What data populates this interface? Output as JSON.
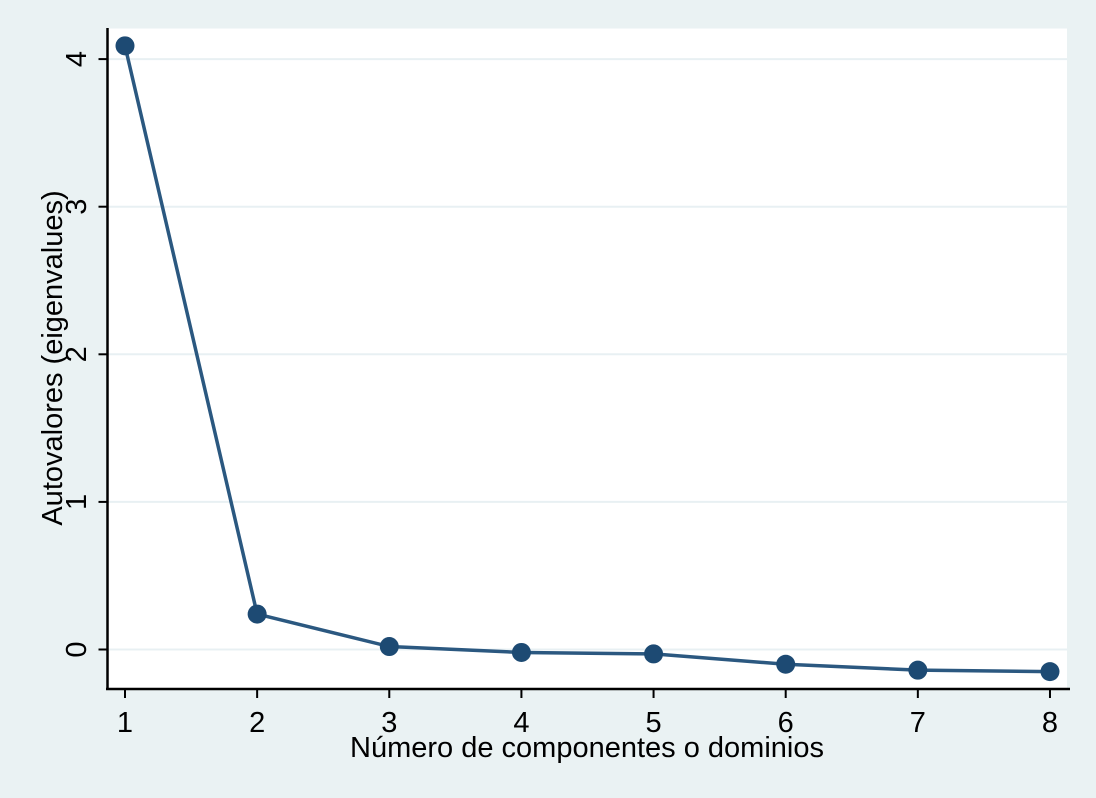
{
  "figure": {
    "background": "#eaf2f3"
  },
  "chart_data": {
    "type": "line",
    "title": "",
    "xlabel": "Número de componentes o dominios",
    "ylabel": "Autovalores (eigenvalues)",
    "x": [
      1,
      2,
      3,
      4,
      5,
      6,
      7,
      8
    ],
    "values": [
      4.09,
      0.24,
      0.02,
      -0.02,
      -0.03,
      -0.1,
      -0.14,
      -0.15
    ],
    "xticks": [
      1,
      2,
      3,
      4,
      5,
      6,
      7,
      8
    ],
    "yticks": [
      0,
      1,
      2,
      3,
      4
    ],
    "xlim": [
      0.87,
      8.13
    ],
    "ylim": [
      -0.27,
      4.21
    ],
    "grid": "horizontal-gridlines-at-yticks",
    "legend": "none",
    "marker": "filled-circle",
    "colors": {
      "background": "#eaf2f3",
      "plot_background": "#ffffff",
      "gridline": "#e8f0f3",
      "line": "#2b5880",
      "marker": "#1d4a73",
      "axis": "#000000",
      "text": "#000000"
    }
  }
}
